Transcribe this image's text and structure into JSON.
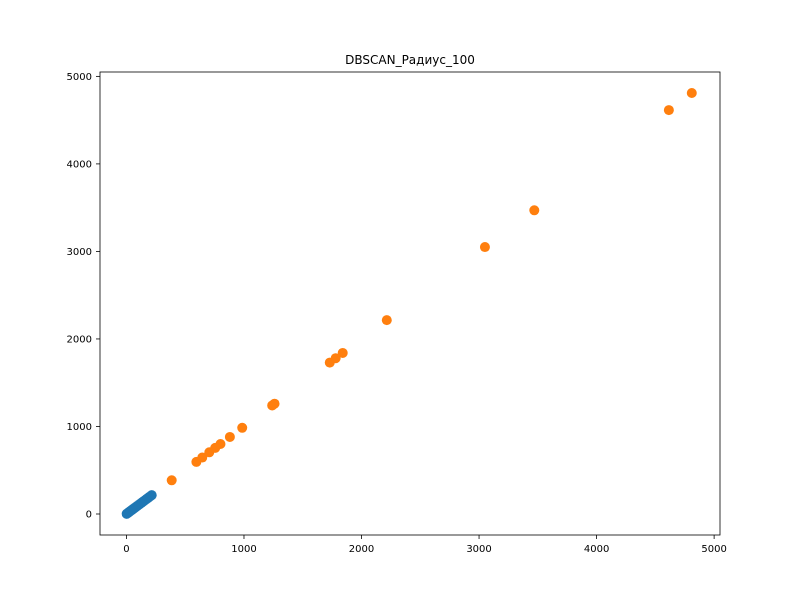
{
  "chart_data": {
    "type": "scatter",
    "title": "DBSCAN_Радиус_100",
    "xlabel": "",
    "ylabel": "",
    "xlim": [
      -225,
      5050
    ],
    "ylim": [
      -240,
      5050
    ],
    "xticks": [
      0,
      1000,
      2000,
      3000,
      4000,
      5000
    ],
    "yticks": [
      0,
      1000,
      2000,
      3000,
      4000,
      5000
    ],
    "grid": false,
    "series": [
      {
        "color": "#1f77b4",
        "x": [
          2,
          10,
          18,
          25,
          35,
          45,
          55,
          65,
          75,
          88,
          100,
          112,
          125,
          138,
          150,
          163,
          175,
          188,
          200,
          215
        ],
        "y": [
          2,
          10,
          18,
          25,
          35,
          45,
          55,
          65,
          75,
          88,
          100,
          112,
          125,
          138,
          150,
          163,
          175,
          188,
          200,
          215
        ]
      },
      {
        "color": "#ff7f0e",
        "x": [
          385,
          595,
          645,
          705,
          755,
          800,
          880,
          985,
          1240,
          1260,
          1730,
          1780,
          1840,
          2215,
          3050,
          3470,
          4615,
          4810
        ],
        "y": [
          385,
          595,
          645,
          705,
          755,
          800,
          880,
          985,
          1240,
          1260,
          1730,
          1780,
          1840,
          2215,
          3050,
          3470,
          4615,
          4810
        ]
      }
    ]
  }
}
